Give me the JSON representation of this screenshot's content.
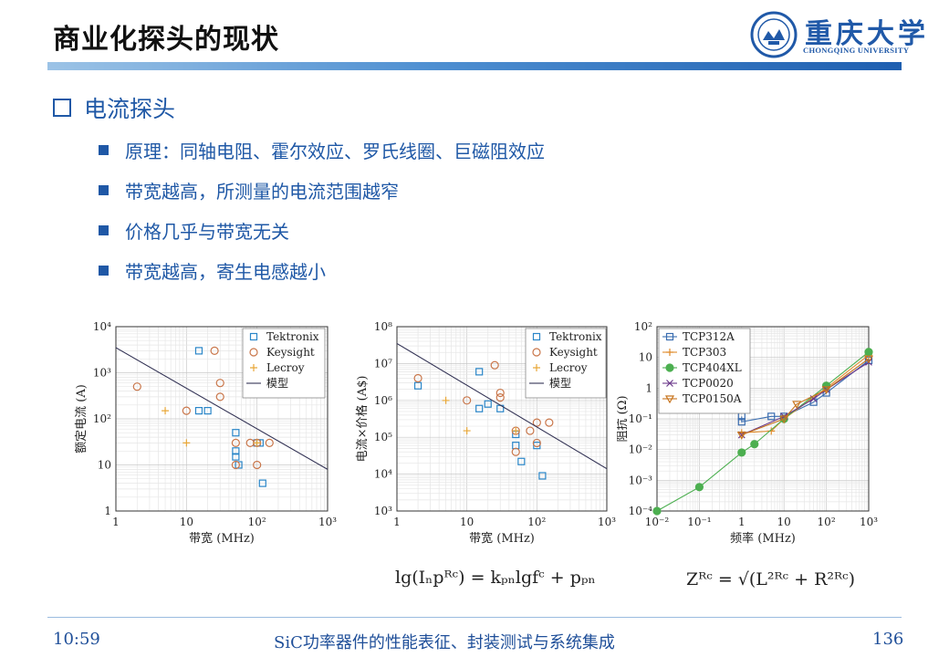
{
  "header": {
    "title": "商业化探头的现状"
  },
  "logo": {
    "name": "重庆大学",
    "sub": "CHONGQING UNIVERSITY"
  },
  "section": {
    "heading": "电流探头"
  },
  "bullets": [
    "原理：同轴电阻、霍尔效应、罗氏线圈、巨磁阻效应",
    "带宽越高，所测量的电流范围越窄",
    "价格几乎与带宽无关",
    "带宽越高，寄生电感越小"
  ],
  "chart_data": [
    {
      "type": "scatter",
      "xlabel": "带宽 (MHz)",
      "ylabel": "额定电流 (A)",
      "xscale": "log",
      "yscale": "log",
      "xlim": [
        1,
        1000
      ],
      "ylim": [
        1,
        10000
      ],
      "xticks": [
        "1",
        "10",
        "10²",
        "10³"
      ],
      "yticks": [
        "1",
        "10",
        "10²",
        "10³",
        "10⁴"
      ],
      "legend": [
        "Tektronix",
        "Keysight",
        "Lecroy",
        "模型"
      ],
      "colors": {
        "Tektronix": "#2a86c8",
        "Keysight": "#c9764a",
        "Lecroy": "#e8a738",
        "模型": "#333355"
      },
      "series": [
        {
          "name": "Tektronix",
          "marker": "square",
          "points": [
            [
              15,
              3000
            ],
            [
              15,
              150
            ],
            [
              20,
              150
            ],
            [
              50,
              50
            ],
            [
              50,
              20
            ],
            [
              50,
              15
            ],
            [
              55,
              10
            ],
            [
              100,
              30
            ],
            [
              110,
              30
            ],
            [
              120,
              4
            ]
          ]
        },
        {
          "name": "Keysight",
          "marker": "circle",
          "points": [
            [
              2,
              500
            ],
            [
              10,
              150
            ],
            [
              25,
              3000
            ],
            [
              30,
              600
            ],
            [
              30,
              300
            ],
            [
              50,
              30
            ],
            [
              50,
              10
            ],
            [
              80,
              30
            ],
            [
              100,
              30
            ],
            [
              100,
              10
            ],
            [
              150,
              30
            ]
          ]
        },
        {
          "name": "Lecroy",
          "marker": "plus",
          "points": [
            [
              5,
              150
            ],
            [
              10,
              30
            ],
            [
              100,
              30
            ]
          ]
        },
        {
          "name": "模型",
          "marker": "line",
          "points": [
            [
              1,
              3500
            ],
            [
              1000,
              8
            ]
          ]
        }
      ]
    },
    {
      "type": "scatter",
      "xlabel": "带宽 (MHz)",
      "ylabel": "电流×价格 (A$)",
      "xscale": "log",
      "yscale": "log",
      "xlim": [
        1,
        1000
      ],
      "ylim": [
        1000,
        100000000
      ],
      "xticks": [
        "1",
        "10",
        "10²",
        "10³"
      ],
      "yticks": [
        "10³",
        "10⁴",
        "10⁵",
        "10⁶",
        "10⁷",
        "10⁸"
      ],
      "legend": [
        "Tektronix",
        "Keysight",
        "Lecroy",
        "模型"
      ],
      "colors": {
        "Tektronix": "#2a86c8",
        "Keysight": "#c9764a",
        "Lecroy": "#e8a738",
        "模型": "#333355"
      },
      "series": [
        {
          "name": "Tektronix",
          "marker": "square",
          "points": [
            [
              2,
              2500000
            ],
            [
              15,
              6000000
            ],
            [
              15,
              600000
            ],
            [
              20,
              800000
            ],
            [
              30,
              600000
            ],
            [
              50,
              120000
            ],
            [
              50,
              60000
            ],
            [
              60,
              22000
            ],
            [
              100,
              60000
            ],
            [
              120,
              9000
            ]
          ]
        },
        {
          "name": "Keysight",
          "marker": "circle",
          "points": [
            [
              2,
              4000000
            ],
            [
              10,
              1000000
            ],
            [
              25,
              9000000
            ],
            [
              30,
              1600000
            ],
            [
              30,
              1200000
            ],
            [
              50,
              150000
            ],
            [
              50,
              40000
            ],
            [
              80,
              150000
            ],
            [
              100,
              250000
            ],
            [
              100,
              70000
            ],
            [
              150,
              250000
            ]
          ]
        },
        {
          "name": "Lecroy",
          "marker": "plus",
          "points": [
            [
              5,
              1000000
            ],
            [
              10,
              150000
            ],
            [
              50,
              150000
            ]
          ]
        },
        {
          "name": "模型",
          "marker": "line",
          "points": [
            [
              1,
              35000000
            ],
            [
              1000,
              14000
            ]
          ]
        }
      ]
    },
    {
      "type": "line",
      "xlabel": "频率 (MHz)",
      "ylabel": "阻抗 (Ω)",
      "xscale": "log",
      "yscale": "log",
      "xlim": [
        0.01,
        1000
      ],
      "ylim": [
        0.0001,
        100
      ],
      "xticks": [
        "10⁻²",
        "10⁻¹",
        "1",
        "10",
        "10²",
        "10³"
      ],
      "yticks": [
        "10⁻⁴",
        "10⁻³",
        "10⁻²",
        "10⁻¹",
        "1",
        "10",
        "10²"
      ],
      "legend": [
        "TCP312A",
        "TCP303",
        "TCP404XL",
        "TCP0020",
        "TCP0150A"
      ],
      "colors": {
        "TCP312A": "#3a6db0",
        "TCP303": "#e08a2a",
        "TCP404XL": "#4caf50",
        "TCP0020": "#6b3a8a",
        "TCP0150A": "#c8751e"
      },
      "series": [
        {
          "name": "TCP312A",
          "marker": "square",
          "points": [
            [
              1,
              0.12
            ],
            [
              1,
              0.08
            ],
            [
              5,
              0.12
            ],
            [
              10,
              0.12
            ],
            [
              50,
              0.35
            ],
            [
              100,
              0.7
            ],
            [
              1000,
              8
            ]
          ]
        },
        {
          "name": "TCP303",
          "marker": "plus",
          "points": [
            [
              1,
              0.035
            ],
            [
              5,
              0.04
            ],
            [
              10,
              0.1
            ],
            [
              100,
              1.0
            ],
            [
              1000,
              12
            ]
          ]
        },
        {
          "name": "TCP404XL",
          "marker": "circle",
          "points": [
            [
              0.01,
              0.0001
            ],
            [
              0.1,
              0.0006
            ],
            [
              1,
              0.008
            ],
            [
              2,
              0.015
            ],
            [
              10,
              0.1
            ],
            [
              100,
              1.2
            ],
            [
              1000,
              15
            ]
          ]
        },
        {
          "name": "TCP0020",
          "marker": "x",
          "points": [
            [
              1,
              0.03
            ],
            [
              10,
              0.12
            ],
            [
              50,
              0.45
            ],
            [
              100,
              0.9
            ],
            [
              1000,
              7
            ]
          ]
        },
        {
          "name": "TCP0150A",
          "marker": "triangle",
          "points": [
            [
              1,
              0.03
            ],
            [
              10,
              0.1
            ],
            [
              20,
              0.3
            ],
            [
              100,
              0.9
            ],
            [
              1000,
              9
            ]
          ]
        }
      ]
    }
  ],
  "formulas": {
    "left": "lg(Iₙpᴿᶜ) = kₚₙlgfᶜ + pₚₙ",
    "right": "Zᴿᶜ = √(L²ᴿᶜ + R²ᴿᶜ)"
  },
  "footer": {
    "time": "10:59",
    "center": "SiC功率器件的性能表征、封装测试与系统集成",
    "page": "136"
  }
}
